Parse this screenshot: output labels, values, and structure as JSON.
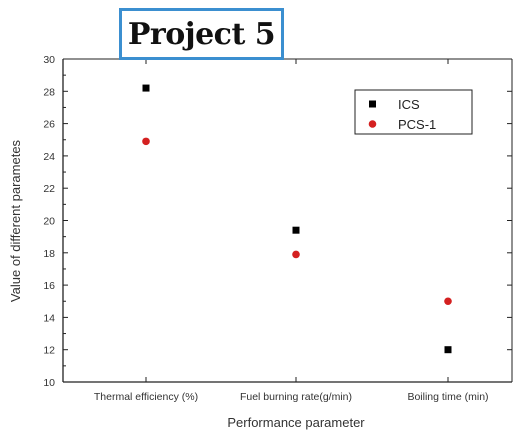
{
  "title_box": {
    "text": "Project 5",
    "border_color": "#3b8fd0"
  },
  "chart_data": {
    "type": "scatter",
    "categories": [
      "Thermal efficiency (%)",
      "Fuel burning rate(g/min)",
      "Boiling time (min)"
    ],
    "series": [
      {
        "name": "ICS",
        "values": [
          28.2,
          19.4,
          12.0
        ],
        "color": "#000000",
        "marker": "square"
      },
      {
        "name": "PCS-1",
        "values": [
          24.9,
          17.9,
          15.0
        ],
        "color": "#d42020",
        "marker": "circle"
      }
    ],
    "xlabel": "Performance parameter",
    "ylabel": "Value of different parametes",
    "ylim": [
      10,
      30
    ],
    "yticks": [
      10,
      12,
      14,
      16,
      18,
      20,
      22,
      24,
      26,
      28,
      30
    ],
    "grid": false,
    "legend_position": "top-right"
  }
}
